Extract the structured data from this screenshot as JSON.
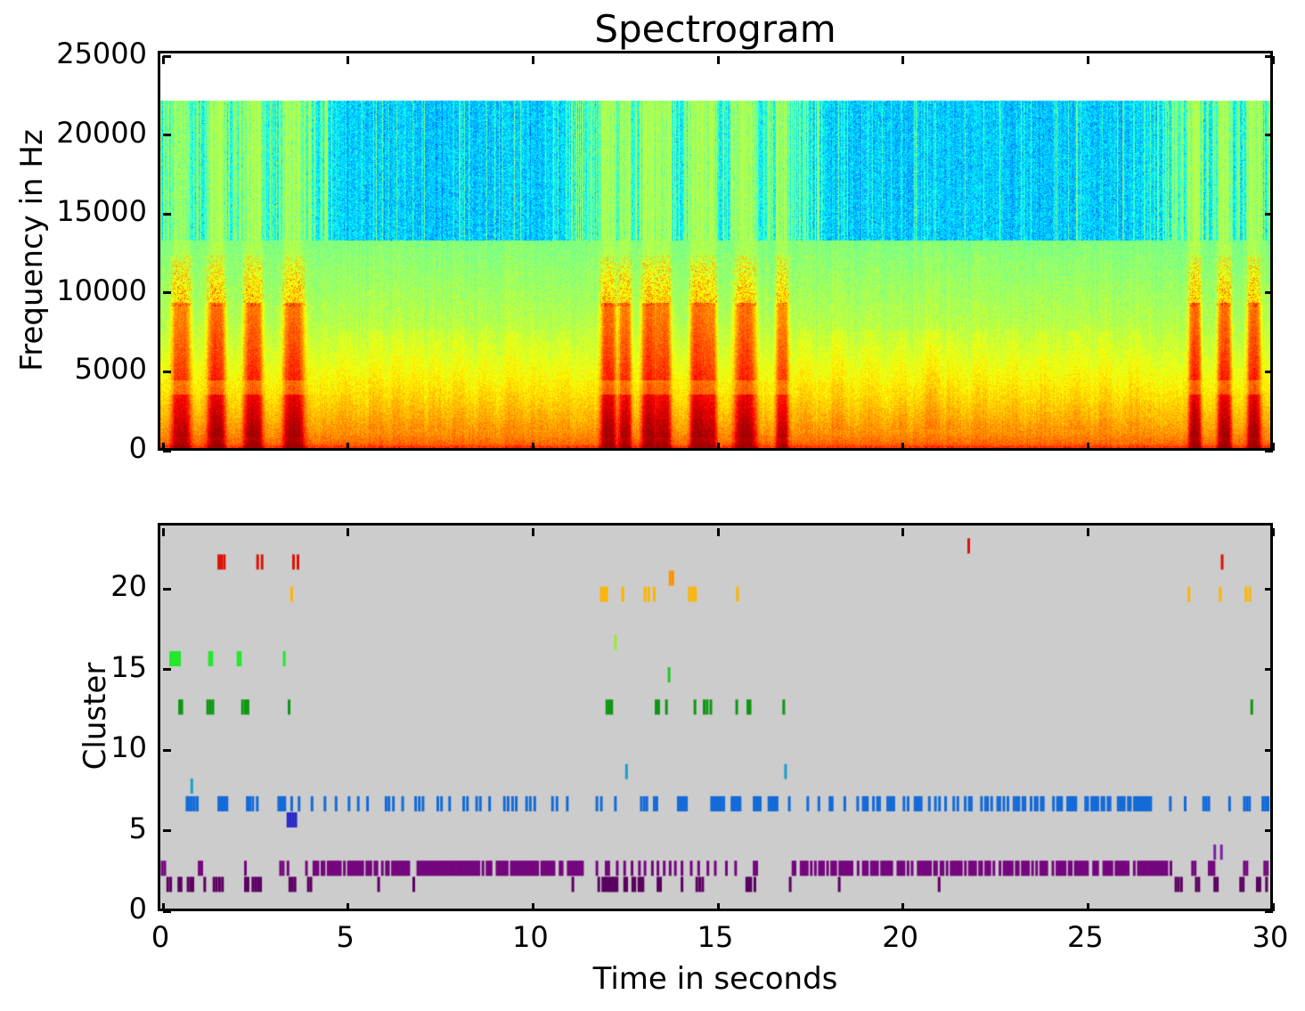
{
  "figure": {
    "title": "Spectrogram",
    "background": "#ffffff",
    "top_plot": {
      "ylabel": "Frequency in Hz",
      "ylim": [
        0,
        25000
      ],
      "xlim": [
        0,
        30
      ],
      "yticks": [
        25000,
        20000,
        15000,
        10000,
        5000,
        0
      ],
      "ytick_labels": [
        "25000",
        "20000",
        "15000",
        "10000",
        "5000",
        "0"
      ],
      "xticks": [
        0,
        5,
        10,
        15,
        20,
        25,
        30
      ]
    },
    "bottom_plot": {
      "ylabel": "Cluster",
      "xlabel": "Time in seconds",
      "ylim": [
        0,
        23.76
      ],
      "xlim": [
        0,
        30
      ],
      "yticks": [
        0,
        5,
        10,
        15,
        20
      ],
      "ytick_labels": [
        "0",
        "5",
        "10",
        "15",
        "20"
      ],
      "xticks": [
        0,
        5,
        10,
        15,
        20,
        25,
        30
      ],
      "xtick_labels": [
        "0",
        "5",
        "10",
        "15",
        "20",
        "25",
        "30"
      ],
      "background": "#cccccc"
    }
  },
  "chart_data": [
    {
      "type": "heatmap",
      "subplot": "top",
      "title": "Spectrogram",
      "xlabel": "Time in seconds",
      "ylabel": "Frequency in Hz",
      "xlim": [
        0,
        30
      ],
      "ylim": [
        0,
        25000
      ],
      "colormap": "jet",
      "signal_band_top_hz": 22050,
      "noise_band_split_hz": 13200,
      "events_strong": {
        "centers": [
          0.55,
          1.5,
          2.5,
          3.6,
          12.1,
          12.55,
          13.2,
          13.6,
          14.5,
          14.85,
          15.8,
          16.8,
          27.95,
          28.75,
          29.55
        ],
        "half_widths": [
          0.27,
          0.26,
          0.26,
          0.3,
          0.22,
          0.18,
          0.22,
          0.2,
          0.2,
          0.18,
          0.3,
          0.18,
          0.17,
          0.19,
          0.19
        ],
        "amps": [
          0.9,
          1,
          1,
          1,
          1,
          0.95,
          1,
          0.95,
          1,
          0.9,
          1,
          0.85,
          1,
          1,
          1
        ]
      },
      "events_weak": {
        "centers": [
          5.0,
          5.8,
          6.4,
          6.9,
          7.4,
          8.1,
          8.8,
          9.5,
          10.2,
          10.9,
          17.4,
          18.3,
          19.15,
          20.0,
          20.7,
          20.9,
          21.4,
          22.15,
          23.0,
          23.9,
          24.7,
          25.5,
          26.3
        ],
        "amps": [
          0.25,
          0.3,
          0.28,
          0.3,
          0.26,
          0.3,
          0.28,
          0.3,
          0.26,
          0.25,
          0.3,
          0.45,
          0.3,
          0.3,
          0.28,
          0.45,
          0.3,
          0.26,
          0.3,
          0.25,
          0.28,
          0.3,
          0.26
        ]
      }
    },
    {
      "type": "scatter",
      "subplot": "bottom",
      "marker": "|",
      "xlabel": "Time in seconds",
      "ylabel": "Cluster",
      "xlim": [
        0,
        30
      ],
      "ylim": [
        0,
        23.76
      ],
      "background": "#cccccc",
      "series": [
        {
          "cluster": 22.5,
          "color": "#dd1205",
          "times": [
            21.85
          ]
        },
        {
          "cluster": 21.5,
          "color": "#dd1205",
          "times": [
            1.58,
            1.65,
            1.73,
            2.63,
            2.75,
            3.6,
            3.72,
            28.7
          ]
        },
        {
          "cluster": 20.5,
          "color": "#ff9100",
          "times": [
            13.78,
            13.85
          ]
        },
        {
          "cluster": 19.5,
          "color": "#ffb400",
          "times": [
            3.55,
            11.92,
            11.99,
            12.06,
            12.5,
            13.1,
            13.2,
            13.35,
            14.3,
            14.38,
            14.46,
            15.6,
            27.8,
            28.65,
            29.35,
            29.45
          ]
        },
        {
          "cluster": 16.5,
          "color": "#9de832",
          "times": [
            12.3
          ]
        },
        {
          "cluster": 15.5,
          "color": "#22e82a",
          "times": [
            0.28,
            0.34,
            0.4,
            0.46,
            0.52,
            1.33,
            1.39,
            2.1,
            2.16,
            3.35
          ]
        },
        {
          "cluster": 14.5,
          "color": "#25c525",
          "times": [
            13.75
          ]
        },
        {
          "cluster": 12.5,
          "color": "#0e9612",
          "times": [
            0.52,
            0.58,
            1.28,
            1.35,
            1.42,
            2.22,
            2.3,
            2.37,
            3.48,
            12.07,
            12.14,
            12.2,
            13.4,
            13.47,
            13.68,
            14.45,
            14.7,
            14.78,
            14.88,
            15.58,
            15.88,
            15.94,
            16.85,
            29.5
          ]
        },
        {
          "cluster": 8.5,
          "color": "#1ba0cc",
          "times": [
            12.6,
            16.9
          ]
        },
        {
          "cluster": 7.6,
          "color": "#1ba0cc",
          "times": [
            0.85
          ]
        },
        {
          "cluster": 6.5,
          "color": "#146bd8",
          "times": [
            0.72,
            0.78,
            0.85,
            0.92,
            1.0,
            2.35,
            2.42,
            2.5,
            2.62,
            3.55,
            3.75,
            4.1,
            4.45,
            4.75,
            5.1,
            5.35,
            5.6,
            6.1,
            6.18,
            6.3,
            6.55,
            6.9,
            7.0,
            7.1,
            7.5,
            7.6,
            7.82,
            8.2,
            8.3,
            8.55,
            8.65,
            8.9,
            9.3,
            9.4,
            9.52,
            9.62,
            9.9,
            10.0,
            10.12,
            10.6,
            10.72,
            11.0,
            11.8,
            11.92,
            12.3,
            13.0,
            13.08,
            13.15,
            13.35,
            13.42,
            17.0,
            17.5,
            17.8,
            18.1,
            18.16,
            18.5,
            18.85,
            27.3,
            27.7,
            28.2,
            28.27,
            28.34,
            28.9,
            29.3,
            29.37,
            29.44,
            29.8,
            29.87,
            29.94
          ],
          "bursts": [
            [
              1.58,
              1.85,
              0.95
            ],
            [
              3.2,
              3.42,
              0.9
            ],
            [
              14.0,
              14.25,
              0.95
            ],
            [
              14.9,
              15.25,
              0.95
            ],
            [
              15.45,
              15.7,
              0.9
            ],
            [
              16.05,
              16.25,
              0.85
            ],
            [
              16.45,
              16.7,
              0.9
            ],
            [
              19.0,
              20.3,
              0.5
            ],
            [
              20.4,
              21.6,
              0.45
            ],
            [
              21.7,
              23.1,
              0.5
            ],
            [
              23.15,
              24.8,
              0.55
            ],
            [
              24.9,
              26.5,
              0.5
            ],
            [
              26.55,
              26.85,
              0.9
            ]
          ]
        },
        {
          "cluster": 5.5,
          "color": "#2424c8",
          "times": [
            3.45,
            3.52,
            3.59,
            3.66
          ]
        },
        {
          "cluster": 3.5,
          "color": "#7d1fa8",
          "times": [
            28.5,
            28.68
          ]
        },
        {
          "cluster": 2.5,
          "color": "#75067e",
          "times": [
            0.05,
            0.12,
            1.05,
            1.12,
            2.3,
            3.25,
            3.32,
            3.45,
            3.95,
            11.8,
            12.05,
            12.12,
            12.35,
            12.55,
            12.75,
            12.95,
            13.1,
            13.3,
            13.45,
            13.62,
            13.78,
            13.92,
            14.1,
            14.35,
            14.55,
            14.8,
            15.0,
            15.3,
            15.55,
            16.05,
            16.12,
            27.9,
            27.97,
            28.35,
            28.42,
            28.48,
            29.3,
            29.37,
            29.85,
            29.92
          ],
          "bursts": [
            [
              4.15,
              5.9,
              0.85
            ],
            [
              6.0,
              6.75,
              0.85
            ],
            [
              6.85,
              9.0,
              0.8
            ],
            [
              9.1,
              11.45,
              0.85
            ],
            [
              17.1,
              18.9,
              0.8
            ],
            [
              19.0,
              21.0,
              0.7
            ],
            [
              21.1,
              23.2,
              0.75
            ],
            [
              23.3,
              25.4,
              0.7
            ],
            [
              25.5,
              27.35,
              0.75
            ]
          ]
        },
        {
          "cluster": 1.5,
          "color": "#5b0060",
          "times": [
            0.2,
            0.28,
            0.5,
            0.56,
            0.75,
            0.82,
            0.88,
            1.2,
            1.45,
            1.52,
            1.6,
            1.68,
            2.3,
            2.37,
            2.5,
            2.57,
            2.64,
            2.71,
            3.5,
            3.57,
            3.64,
            4.0,
            4.07,
            5.9,
            6.85,
            11.15,
            13.45,
            13.52,
            14.1,
            14.5,
            14.58,
            14.66,
            18.35,
            21.05,
            27.45,
            27.52,
            27.6,
            28.0,
            28.07,
            28.5,
            28.57,
            29.2,
            29.27,
            29.65,
            29.72,
            29.9
          ],
          "bursts": [
            [
              11.85,
              12.35,
              0.8
            ],
            [
              12.55,
              13.05,
              0.8
            ],
            [
              15.85,
              16.15,
              0.8
            ],
            [
              16.75,
              17.05,
              0.8
            ]
          ]
        }
      ]
    }
  ]
}
